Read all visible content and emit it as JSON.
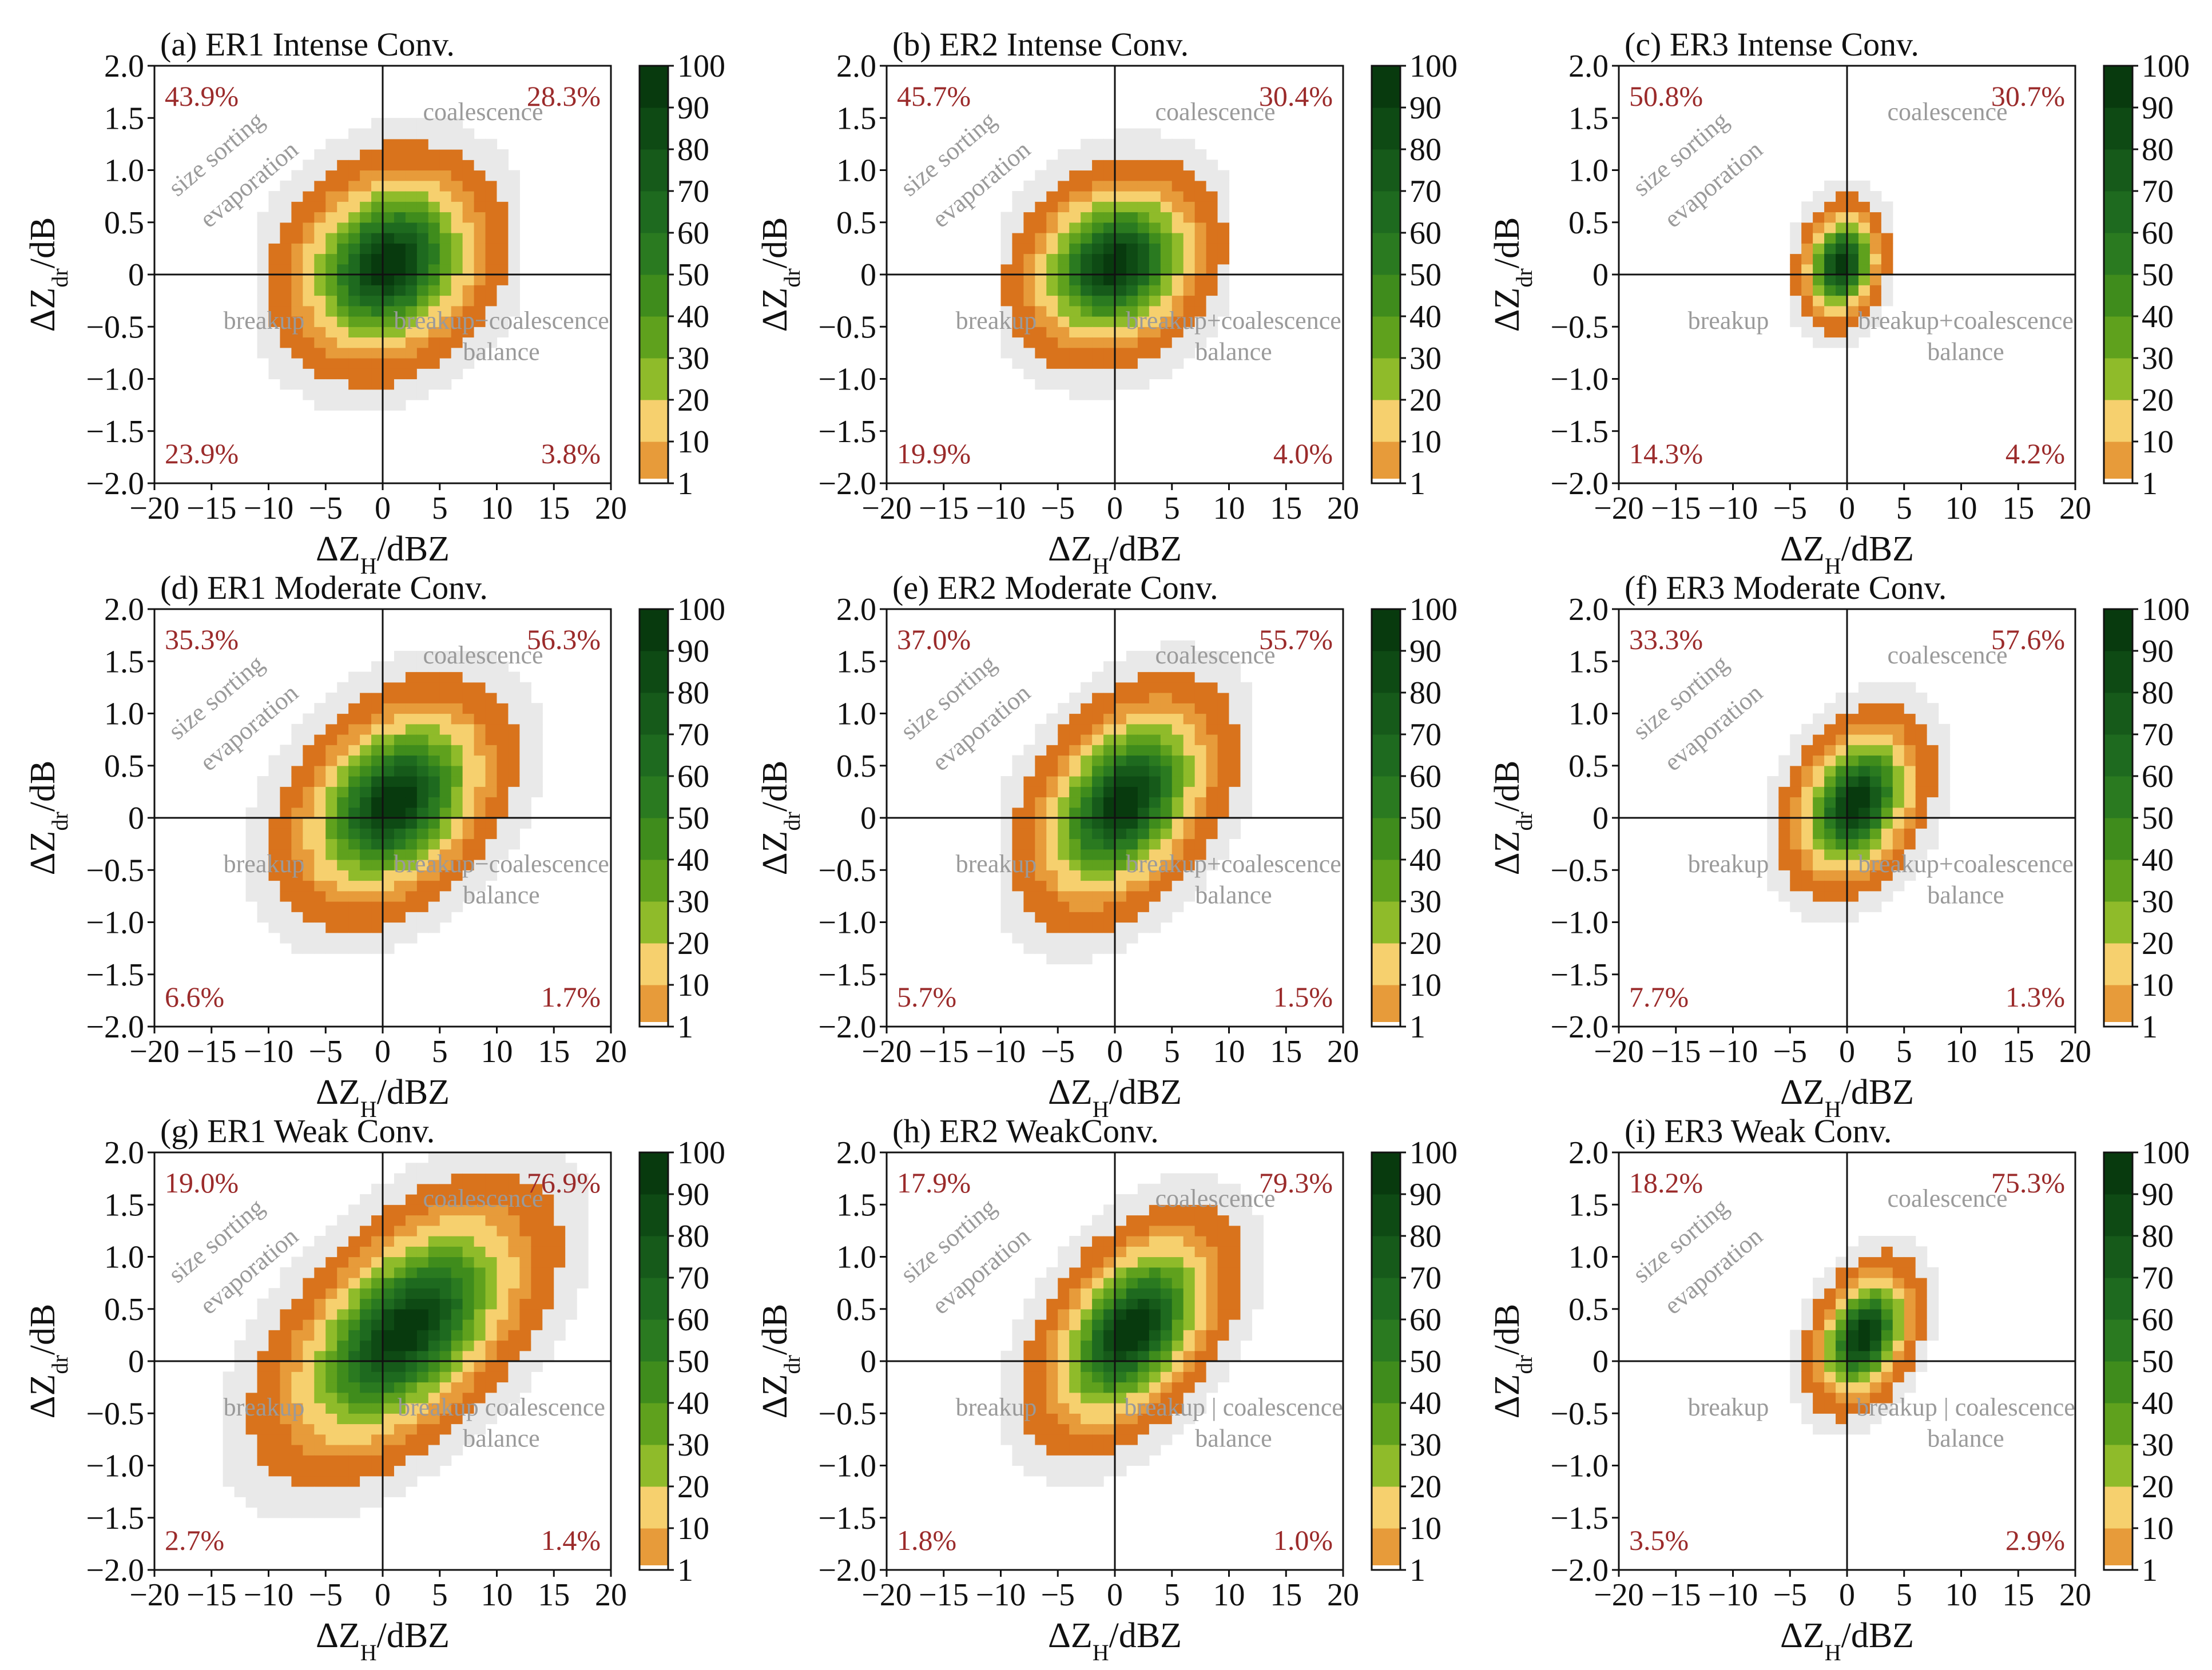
{
  "figure": {
    "axis_text": {
      "x_main": "ΔZ",
      "x_sub": "H",
      "x_unit": "/dBZ",
      "y_main": "ΔZ",
      "y_sub": "dr",
      "y_unit": "/dB"
    },
    "region_labels": {
      "size_sorting": "size sorting",
      "evaporation": "evaporation",
      "coalescence": "coalescence",
      "breakup": "breakup",
      "balance": "balance"
    },
    "colorbar": {
      "ticks": [
        "1",
        "10",
        "20",
        "30",
        "40",
        "50",
        "60",
        "70",
        "80",
        "90",
        "100"
      ],
      "colors": [
        "#d9731c",
        "#e79b3a",
        "#f6d06e",
        "#8fbb2a",
        "#5fa11d",
        "#3f8c1c",
        "#2a7a20",
        "#1e6a1f",
        "#165a1a",
        "#0e4a14",
        "#083a0e"
      ]
    }
  },
  "chart_data": [
    {
      "type": "heatmap",
      "title": "(a) ER1 Intense Conv.",
      "xlabel": "ΔZH/dBZ",
      "ylabel": "ΔZdr/dB",
      "xlim": [
        -20,
        20
      ],
      "ylim": [
        -2.0,
        2.0
      ],
      "xticks": [
        "−20",
        "−15",
        "−10",
        "−5",
        "0",
        "5",
        "10",
        "15",
        "20"
      ],
      "yticks": [
        "−2.0",
        "−1.5",
        "−1.0",
        "−0.5",
        "0",
        "0.5",
        "1.0",
        "1.5",
        "2.0"
      ],
      "quadrant_percentages": {
        "upper_left": "43.9%",
        "upper_right": "28.3%",
        "lower_left": "23.9%",
        "lower_right": "3.8%"
      },
      "lower_right_label": "breakup−coalescence",
      "distribution": {
        "center_x": 0.5,
        "center_y": 0.1,
        "spread_x": 3.5,
        "spread_y": 0.38,
        "slope": 0.02,
        "peak_percent": 100,
        "extent": 7
      }
    },
    {
      "type": "heatmap",
      "title": "(b) ER2 Intense Conv.",
      "xlabel": "ΔZH/dBZ",
      "ylabel": "ΔZdr/dB",
      "xlim": [
        -20,
        20
      ],
      "ylim": [
        -2.0,
        2.0
      ],
      "xticks": [
        "−20",
        "−15",
        "−10",
        "−5",
        "0",
        "5",
        "10",
        "15",
        "20"
      ],
      "yticks": [
        "−2.0",
        "−1.5",
        "−1.0",
        "−0.5",
        "0",
        "0.5",
        "1.0",
        "1.5",
        "2.0"
      ],
      "quadrant_percentages": {
        "upper_left": "45.7%",
        "upper_right": "30.4%",
        "lower_left": "19.9%",
        "lower_right": "4.0%"
      },
      "lower_right_label": "breakup+coalescence",
      "distribution": {
        "center_x": 0.0,
        "center_y": 0.1,
        "spread_x": 3.2,
        "spread_y": 0.34,
        "slope": 0.02,
        "peak_percent": 100,
        "extent": 6
      }
    },
    {
      "type": "heatmap",
      "title": "(c) ER3 Intense Conv.",
      "xlabel": "ΔZH/dBZ",
      "ylabel": "ΔZdr/dB",
      "xlim": [
        -20,
        20
      ],
      "ylim": [
        -2.0,
        2.0
      ],
      "xticks": [
        "−20",
        "−15",
        "−10",
        "−5",
        "0",
        "5",
        "10",
        "15",
        "20"
      ],
      "yticks": [
        "−2.0",
        "−1.5",
        "−1.0",
        "−0.5",
        "0",
        "0.5",
        "1.0",
        "1.5",
        "2.0"
      ],
      "quadrant_percentages": {
        "upper_left": "50.8%",
        "upper_right": "30.7%",
        "lower_left": "14.3%",
        "lower_right": "4.2%"
      },
      "lower_right_label": "breakup+coalescence",
      "distribution": {
        "center_x": -0.5,
        "center_y": 0.1,
        "spread_x": 1.4,
        "spread_y": 0.22,
        "slope": 0.02,
        "peak_percent": 100,
        "extent": 3
      }
    },
    {
      "type": "heatmap",
      "title": "(d) ER1 Moderate Conv.",
      "xlabel": "ΔZH/dBZ",
      "ylabel": "ΔZdr/dB",
      "xlim": [
        -20,
        20
      ],
      "ylim": [
        -2.0,
        2.0
      ],
      "xticks": [
        "−20",
        "−15",
        "−10",
        "−5",
        "0",
        "5",
        "10",
        "15",
        "20"
      ],
      "yticks": [
        "−2.0",
        "−1.5",
        "−1.0",
        "−0.5",
        "0",
        "0.5",
        "1.0",
        "1.5",
        "2.0"
      ],
      "quadrant_percentages": {
        "upper_left": "35.3%",
        "upper_right": "56.3%",
        "lower_left": "6.6%",
        "lower_right": "1.7%"
      },
      "lower_right_label": "breakup−coalescence",
      "distribution": {
        "center_x": 1.0,
        "center_y": 0.15,
        "spread_x": 3.6,
        "spread_y": 0.38,
        "slope": 0.04,
        "peak_percent": 100,
        "extent": 8
      }
    },
    {
      "type": "heatmap",
      "title": "(e) ER2 Moderate Conv.",
      "xlabel": "ΔZH/dBZ",
      "ylabel": "ΔZdr/dB",
      "xlim": [
        -20,
        20
      ],
      "ylim": [
        -2.0,
        2.0
      ],
      "xticks": [
        "−20",
        "−15",
        "−10",
        "−5",
        "0",
        "5",
        "10",
        "15",
        "20"
      ],
      "yticks": [
        "−2.0",
        "−1.5",
        "−1.0",
        "−0.5",
        "0",
        "0.5",
        "1.0",
        "1.5",
        "2.0"
      ],
      "quadrant_percentages": {
        "upper_left": "37.0%",
        "upper_right": "55.7%",
        "lower_left": "5.7%",
        "lower_right": "1.5%"
      },
      "lower_right_label": "breakup+coalescence",
      "distribution": {
        "center_x": 0.8,
        "center_y": 0.15,
        "spread_x": 3.3,
        "spread_y": 0.38,
        "slope": 0.05,
        "peak_percent": 100,
        "extent": 7
      }
    },
    {
      "type": "heatmap",
      "title": "(f) ER3 Moderate Conv.",
      "xlabel": "ΔZH/dBZ",
      "ylabel": "ΔZdr/dB",
      "xlim": [
        -20,
        20
      ],
      "ylim": [
        -2.0,
        2.0
      ],
      "xticks": [
        "−20",
        "−15",
        "−10",
        "−5",
        "0",
        "5",
        "10",
        "15",
        "20"
      ],
      "yticks": [
        "−2.0",
        "−1.5",
        "−1.0",
        "−0.5",
        "0",
        "0.5",
        "1.0",
        "1.5",
        "2.0"
      ],
      "quadrant_percentages": {
        "upper_left": "33.3%",
        "upper_right": "57.6%",
        "lower_left": "7.7%",
        "lower_right": "1.3%"
      },
      "lower_right_label": "breakup+coalescence",
      "distribution": {
        "center_x": 0.8,
        "center_y": 0.15,
        "spread_x": 2.3,
        "spread_y": 0.3,
        "slope": 0.04,
        "peak_percent": 100,
        "extent": 5
      }
    },
    {
      "type": "heatmap",
      "title": "(g) ER1 Weak Conv.",
      "xlabel": "ΔZH/dBZ",
      "ylabel": "ΔZdr/dB",
      "xlim": [
        -20,
        20
      ],
      "ylim": [
        -2.0,
        2.0
      ],
      "xticks": [
        "−20",
        "−15",
        "−10",
        "−5",
        "0",
        "5",
        "10",
        "15",
        "20"
      ],
      "yticks": [
        "−2.0",
        "−1.5",
        "−1.0",
        "−0.5",
        "0",
        "0.5",
        "1.0",
        "1.5",
        "2.0"
      ],
      "quadrant_percentages": {
        "upper_left": "19.0%",
        "upper_right": "76.9%",
        "lower_left": "2.7%",
        "lower_right": "1.4%"
      },
      "lower_right_label": "breakup coalescence",
      "distribution": {
        "center_x": 2.0,
        "center_y": 0.3,
        "spread_x": 4.5,
        "spread_y": 0.42,
        "slope": 0.06,
        "peak_percent": 100,
        "extent": 10
      }
    },
    {
      "type": "heatmap",
      "title": "(h) ER2 WeakConv.",
      "xlabel": "ΔZH/dBZ",
      "ylabel": "ΔZdr/dB",
      "xlim": [
        -20,
        20
      ],
      "ylim": [
        -2.0,
        2.0
      ],
      "xticks": [
        "−20",
        "−15",
        "−10",
        "−5",
        "0",
        "5",
        "10",
        "15",
        "20"
      ],
      "yticks": [
        "−2.0",
        "−1.5",
        "−1.0",
        "−0.5",
        "0",
        "0.5",
        "1.0",
        "1.5",
        "2.0"
      ],
      "quadrant_percentages": {
        "upper_left": "17.9%",
        "upper_right": "79.3%",
        "lower_left": "1.8%",
        "lower_right": "1.0%"
      },
      "lower_right_label": "breakup | coalescence",
      "distribution": {
        "center_x": 1.5,
        "center_y": 0.3,
        "spread_x": 3.2,
        "spread_y": 0.36,
        "slope": 0.06,
        "peak_percent": 100,
        "extent": 7
      }
    },
    {
      "type": "heatmap",
      "title": "(i) ER3 Weak Conv.",
      "xlabel": "ΔZH/dBZ",
      "ylabel": "ΔZdr/dB",
      "xlim": [
        -20,
        20
      ],
      "ylim": [
        -2.0,
        2.0
      ],
      "xticks": [
        "−20",
        "−15",
        "−10",
        "−5",
        "0",
        "5",
        "10",
        "15",
        "20"
      ],
      "yticks": [
        "−2.0",
        "−1.5",
        "−1.0",
        "−0.5",
        "0",
        "0.5",
        "1.0",
        "1.5",
        "2.0"
      ],
      "quadrant_percentages": {
        "upper_left": "18.2%",
        "upper_right": "75.3%",
        "lower_left": "3.5%",
        "lower_right": "2.9%"
      },
      "lower_right_label": "breakup | coalescence",
      "distribution": {
        "center_x": 1.5,
        "center_y": 0.25,
        "spread_x": 1.8,
        "spread_y": 0.25,
        "slope": 0.05,
        "peak_percent": 100,
        "extent": 5
      }
    }
  ]
}
